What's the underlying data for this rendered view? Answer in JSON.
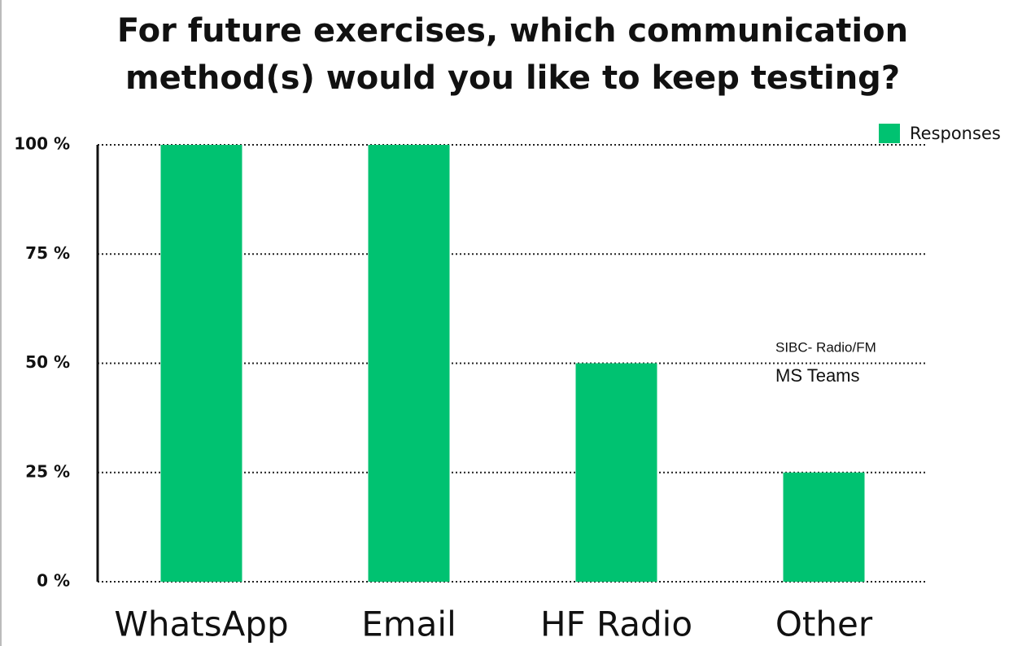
{
  "chart_data": {
    "type": "bar",
    "title": "For future exercises, which communication method(s) would you like to keep testing?",
    "categories": [
      "WhatsApp",
      "Email",
      "HF Radio",
      "Other"
    ],
    "series": [
      {
        "name": "Responses",
        "color": "#00c271",
        "values": [
          100,
          100,
          50,
          25
        ]
      }
    ],
    "ylim": [
      0,
      100
    ],
    "yticks": [
      {
        "value": 0,
        "label": "0 %"
      },
      {
        "value": 25,
        "label": "25 %"
      },
      {
        "value": 50,
        "label": "50 %"
      },
      {
        "value": 75,
        "label": "75 %"
      },
      {
        "value": 100,
        "label": "100 %"
      }
    ],
    "grid": true,
    "legend": "top-right",
    "annotations": [
      "SIBC- Radio/FM",
      "MS Teams"
    ]
  }
}
